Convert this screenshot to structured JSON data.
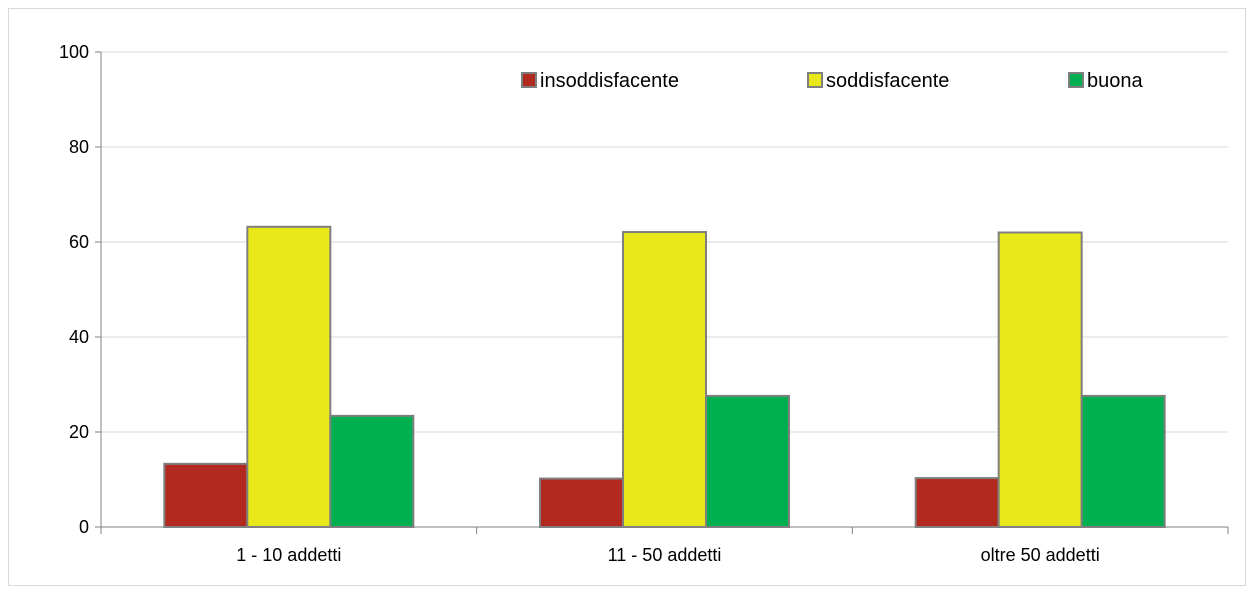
{
  "chart_data": {
    "type": "bar",
    "categories": [
      "1 - 10 addetti",
      "11 - 50 addetti",
      "oltre 50 addetti"
    ],
    "series": [
      {
        "name": "insoddisfacente",
        "color": "#b22a1f",
        "values": [
          13.3,
          10.2,
          10.3
        ]
      },
      {
        "name": "soddisfacente",
        "color": "#e8e81a",
        "values": [
          63.2,
          62.1,
          62.0
        ]
      },
      {
        "name": "buona",
        "color": "#00b050",
        "values": [
          23.4,
          27.6,
          27.6
        ]
      }
    ],
    "title": "",
    "xlabel": "",
    "ylabel": "",
    "ylim": [
      0,
      100
    ],
    "yticks": [
      "0",
      "20",
      "40",
      "60",
      "80",
      "100"
    ],
    "grid": true,
    "legend_position": "top-right",
    "bar_border_color": "#7f7f7f",
    "gridline_color": "#d9d9d9"
  }
}
